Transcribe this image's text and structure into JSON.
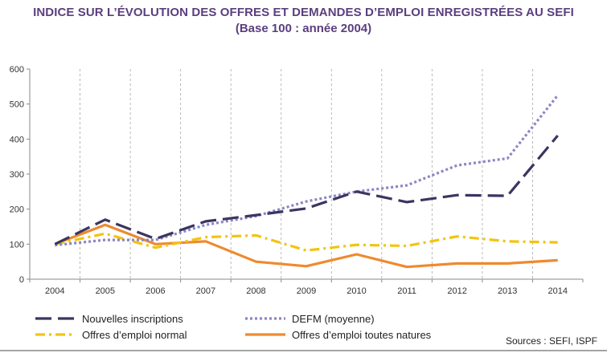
{
  "title": {
    "line1": "INDICE SUR L’ÉVOLUTION DES OFFRES ET DEMANDES D’EMPLOI ENREGISTRÉES AU SEFI",
    "line2": "(Base 100 : année 2004)"
  },
  "source": "Sources : SEFI, ISPF",
  "chart_data": {
    "type": "line",
    "x": [
      "2004",
      "2005",
      "2006",
      "2007",
      "2008",
      "2009",
      "2010",
      "2011",
      "2012",
      "2013",
      "2014"
    ],
    "ylim": [
      0,
      600
    ],
    "yticks": [
      0,
      100,
      200,
      300,
      400,
      500,
      600
    ],
    "grid": "vertical dashed",
    "legend_position": "bottom",
    "series": [
      {
        "name": "Nouvelles inscriptions",
        "color": "#3a3561",
        "style": "long-dash",
        "values": [
          100,
          170,
          115,
          165,
          183,
          202,
          250,
          220,
          240,
          238,
          410
        ]
      },
      {
        "name": "DEFM (moyenne)",
        "color": "#8a86c4",
        "style": "dotted",
        "values": [
          97,
          112,
          112,
          155,
          180,
          222,
          250,
          268,
          325,
          345,
          525
        ]
      },
      {
        "name": "Offres d’emploi normal",
        "color": "#f2c40f",
        "style": "dash-dot",
        "values": [
          100,
          130,
          90,
          120,
          125,
          82,
          98,
          95,
          122,
          108,
          105
        ]
      },
      {
        "name": "Offres d’emploi toutes natures",
        "color": "#ee8a2e",
        "style": "solid",
        "values": [
          100,
          155,
          100,
          108,
          50,
          37,
          71,
          35,
          45,
          45,
          54
        ]
      }
    ]
  }
}
